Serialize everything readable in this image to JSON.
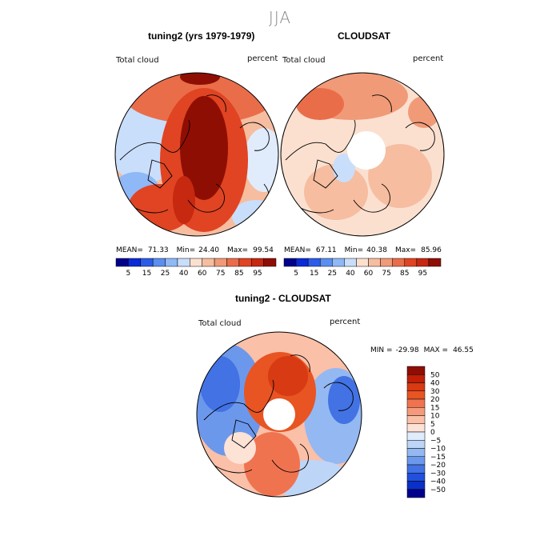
{
  "figure": {
    "season": "JJA",
    "colors": {
      "seq": [
        "#00008b",
        "#0a2ad6",
        "#2b5ce8",
        "#5a8ef0",
        "#8fb8f6",
        "#c9defb",
        "#fbe0d0",
        "#f6bda0",
        "#f19a78",
        "#ea6d4a",
        "#e04422",
        "#c62810",
        "#8f0e04"
      ],
      "div": [
        "#8f0e04",
        "#c01f08",
        "#d83a14",
        "#e85422",
        "#f07350",
        "#f69a7c",
        "#fac0a8",
        "#fde2d6",
        "#e0ecfb",
        "#bdd5f7",
        "#94b8f2",
        "#6c98ec",
        "#4272e4",
        "#2050dc",
        "#0b30c8",
        "#00008b"
      ]
    }
  },
  "panels": [
    {
      "title": "tuning2 (yrs 1979-1979)",
      "variable": "Total cloud",
      "units": "percent",
      "mean_label": "MEAN=",
      "mean": "71.33",
      "min_label": "Min=",
      "min": "24.40",
      "max_label": "Max=",
      "max": "99.54"
    },
    {
      "title": "CLOUDSAT",
      "variable": "Total cloud",
      "units": "percent",
      "mean_label": "MEAN=",
      "mean": "67.11",
      "min_label": "Min=",
      "min": "40.38",
      "max_label": "Max=",
      "max": "85.96"
    }
  ],
  "colorbar_ticks": [
    "5",
    "15",
    "25",
    "40",
    "60",
    "75",
    "85",
    "95"
  ],
  "difference": {
    "title": "tuning2 - CLOUDSAT",
    "variable": "Total cloud",
    "units": "percent",
    "min_label": "MIN =",
    "min": "-29.98",
    "max_label": "MAX =",
    "max": "46.55",
    "levels": [
      "50",
      "40",
      "30",
      "20",
      "15",
      "10",
      "5",
      "0",
      "−5",
      "−10",
      "−15",
      "−20",
      "−30",
      "−40",
      "−50"
    ]
  },
  "chart_data": [
    {
      "type": "heatmap",
      "title": "tuning2 (yrs 1979-1979)",
      "variable": "Total cloud",
      "units": "percent",
      "projection": "north polar stereographic",
      "stats": {
        "mean": 71.33,
        "min": 24.4,
        "max": 99.54
      },
      "color_levels": [
        5,
        15,
        25,
        40,
        60,
        75,
        85,
        95
      ]
    },
    {
      "type": "heatmap",
      "title": "CLOUDSAT",
      "variable": "Total cloud",
      "units": "percent",
      "projection": "north polar stereographic",
      "stats": {
        "mean": 67.11,
        "min": 40.38,
        "max": 85.96
      },
      "color_levels": [
        5,
        15,
        25,
        40,
        60,
        75,
        85,
        95
      ]
    },
    {
      "type": "heatmap",
      "title": "tuning2 - CLOUDSAT",
      "variable": "Total cloud",
      "units": "percent",
      "projection": "north polar stereographic",
      "stats": {
        "min": -29.98,
        "max": 46.55
      },
      "color_levels": [
        -50,
        -40,
        -30,
        -20,
        -15,
        -10,
        -5,
        0,
        5,
        10,
        15,
        20,
        30,
        40,
        50
      ]
    }
  ]
}
